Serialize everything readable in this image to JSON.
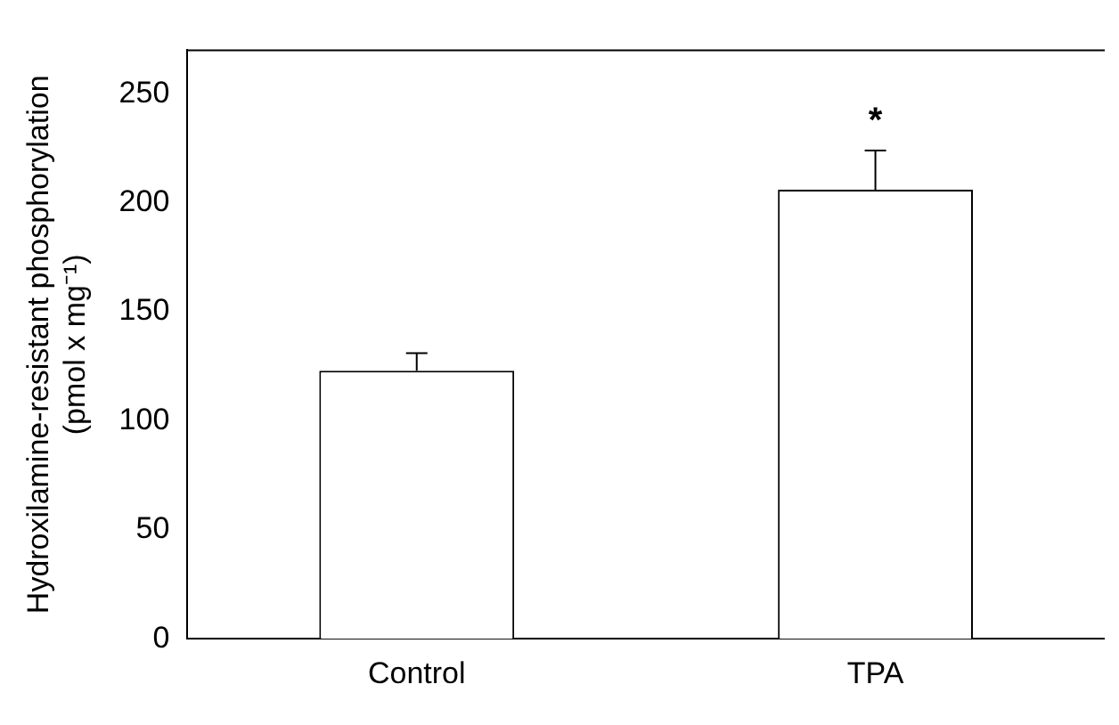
{
  "chart_data": {
    "type": "bar",
    "ylabel": "Hydroxilamine-resistant phosphorylation\n(pmol x mg⁻¹)",
    "categories": [
      "Control",
      "TPA"
    ],
    "values": [
      123,
      206
    ],
    "colors": [
      "#ffffff",
      "#ffffff"
    ],
    "errors": [
      [
        123,
        131
      ],
      [
        206,
        224
      ]
    ],
    "annotations": [
      "*"
    ],
    "ylim": [
      0,
      270
    ],
    "yticks": [
      0,
      50,
      100,
      150,
      200,
      250
    ],
    "grid": false,
    "legend": false
  }
}
